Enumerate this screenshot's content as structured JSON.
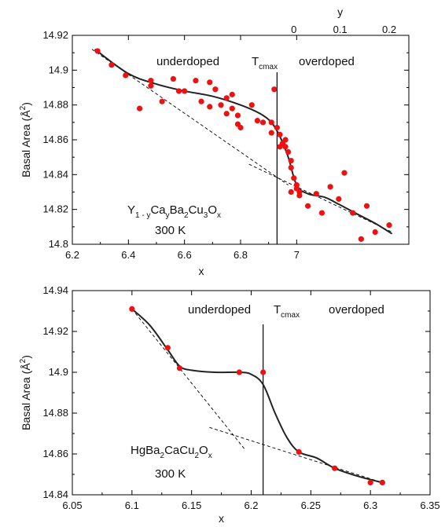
{
  "colors": {
    "point": "#ee1111",
    "line": "#222222",
    "axis": "#000000"
  },
  "chart_data": [
    {
      "type": "scatter",
      "xlabel": "x",
      "ylabel_prefix": "Basal Area (Å",
      "ylabel_sup": "2",
      "ylabel_suffix": ")",
      "xlim": [
        6.2,
        7.4
      ],
      "ylim": [
        14.8,
        14.92
      ],
      "x_ticks": [
        6.2,
        6.4,
        6.6,
        6.8,
        7.0
      ],
      "x_tick_labels": [
        "6.2",
        "6.4",
        "6.6",
        "6.8",
        "7"
      ],
      "y_ticks": [
        14.8,
        14.82,
        14.84,
        14.86,
        14.88,
        14.9,
        14.92
      ],
      "y_tick_labels": [
        "14.8",
        "14.82",
        "14.84",
        "14.86",
        "14.88",
        "14.9",
        "14.92"
      ],
      "top_axis": {
        "label": "y",
        "ticks": [
          {
            "x": 6.99,
            "label": "0"
          },
          {
            "x": 7.155,
            "label": "0.1"
          },
          {
            "x": 7.33,
            "label": "0.2"
          }
        ]
      },
      "annotations": {
        "underdoped": "underdoped",
        "tc_main": "T",
        "tc_sub": "cmax",
        "overdoped": "overdoped",
        "temperature": "300  K"
      },
      "formula": [
        {
          "t": "Y",
          "sub": false
        },
        {
          "t": "1 - y",
          "sub": true
        },
        {
          "t": "Ca",
          "sub": false
        },
        {
          "t": "y",
          "sub": true
        },
        {
          "t": "Ba",
          "sub": false
        },
        {
          "t": "2",
          "sub": true
        },
        {
          "t": "Cu",
          "sub": false
        },
        {
          "t": "3",
          "sub": true
        },
        {
          "t": "O",
          "sub": false
        },
        {
          "t": "x",
          "sub": true
        }
      ],
      "vline_x": 6.93,
      "points": [
        [
          6.29,
          14.911
        ],
        [
          6.34,
          14.903
        ],
        [
          6.39,
          14.897
        ],
        [
          6.44,
          14.878
        ],
        [
          6.48,
          14.894
        ],
        [
          6.48,
          14.891
        ],
        [
          6.52,
          14.882
        ],
        [
          6.56,
          14.895
        ],
        [
          6.58,
          14.888
        ],
        [
          6.6,
          14.888
        ],
        [
          6.64,
          14.894
        ],
        [
          6.66,
          14.882
        ],
        [
          6.69,
          14.893
        ],
        [
          6.69,
          14.879
        ],
        [
          6.71,
          14.889
        ],
        [
          6.73,
          14.88
        ],
        [
          6.75,
          14.884
        ],
        [
          6.75,
          14.875
        ],
        [
          6.77,
          14.886
        ],
        [
          6.77,
          14.878
        ],
        [
          6.79,
          14.874
        ],
        [
          6.79,
          14.869
        ],
        [
          6.8,
          14.867
        ],
        [
          6.84,
          14.88
        ],
        [
          6.86,
          14.871
        ],
        [
          6.88,
          14.87
        ],
        [
          6.91,
          14.87
        ],
        [
          6.91,
          14.864
        ],
        [
          6.92,
          14.889
        ],
        [
          6.93,
          14.867
        ],
        [
          6.94,
          14.863
        ],
        [
          6.94,
          14.856
        ],
        [
          6.95,
          14.858
        ],
        [
          6.96,
          14.86
        ],
        [
          6.96,
          14.856
        ],
        [
          6.97,
          14.853
        ],
        [
          6.98,
          14.848
        ],
        [
          6.98,
          14.844
        ],
        [
          6.98,
          14.83
        ],
        [
          6.99,
          14.838
        ],
        [
          7.0,
          14.834
        ],
        [
          7.0,
          14.832
        ],
        [
          7.01,
          14.83
        ],
        [
          7.01,
          14.828
        ],
        [
          7.04,
          14.822
        ],
        [
          7.07,
          14.829
        ],
        [
          7.09,
          14.818
        ],
        [
          7.12,
          14.833
        ],
        [
          7.15,
          14.826
        ],
        [
          7.17,
          14.841
        ],
        [
          7.2,
          14.818
        ],
        [
          7.23,
          14.803
        ],
        [
          7.25,
          14.822
        ],
        [
          7.28,
          14.807
        ],
        [
          7.33,
          14.811
        ]
      ],
      "fit_curve": [
        [
          6.28,
          14.912
        ],
        [
          6.4,
          14.898
        ],
        [
          6.5,
          14.892
        ],
        [
          6.6,
          14.888
        ],
        [
          6.7,
          14.885
        ],
        [
          6.8,
          14.88
        ],
        [
          6.87,
          14.875
        ],
        [
          6.91,
          14.87
        ],
        [
          6.94,
          14.862
        ],
        [
          6.97,
          14.85
        ],
        [
          7.0,
          14.834
        ],
        [
          7.04,
          14.829
        ],
        [
          7.1,
          14.827
        ],
        [
          7.15,
          14.823
        ],
        [
          7.22,
          14.817
        ],
        [
          7.28,
          14.812
        ],
        [
          7.34,
          14.806
        ]
      ],
      "dashed_lines": [
        [
          [
            6.27,
            14.912
          ],
          [
            6.97,
            14.834
          ]
        ],
        [
          [
            6.83,
            14.846
          ],
          [
            7.34,
            14.807
          ]
        ]
      ]
    },
    {
      "type": "scatter",
      "xlabel": "x",
      "ylabel_prefix": "Basal Area (Å",
      "ylabel_sup": "2",
      "ylabel_suffix": ")",
      "xlim": [
        6.05,
        6.35
      ],
      "ylim": [
        14.84,
        14.94
      ],
      "x_ticks": [
        6.05,
        6.1,
        6.15,
        6.2,
        6.25,
        6.3,
        6.35
      ],
      "x_tick_labels": [
        "6.05",
        "6.1",
        "6.15",
        "6.2",
        "6.25",
        "6.3",
        "6.35"
      ],
      "y_ticks": [
        14.84,
        14.86,
        14.88,
        14.9,
        14.92,
        14.94
      ],
      "y_tick_labels": [
        "14.84",
        "14.86",
        "14.88",
        "14.9",
        "14.92",
        "14.94"
      ],
      "annotations": {
        "underdoped": "underdoped",
        "tc_main": "T",
        "tc_sub": "cmax",
        "overdoped": "overdoped",
        "temperature": "300  K"
      },
      "formula": [
        {
          "t": "HgBa",
          "sub": false
        },
        {
          "t": "2",
          "sub": true
        },
        {
          "t": "CaCu",
          "sub": false
        },
        {
          "t": "2",
          "sub": true
        },
        {
          "t": "O",
          "sub": false
        },
        {
          "t": "x",
          "sub": true
        }
      ],
      "vline_x": 6.21,
      "points": [
        [
          6.1,
          14.931
        ],
        [
          6.13,
          14.912
        ],
        [
          6.14,
          14.902
        ],
        [
          6.19,
          14.9
        ],
        [
          6.21,
          14.9
        ],
        [
          6.24,
          14.861
        ],
        [
          6.27,
          14.853
        ],
        [
          6.3,
          14.846
        ],
        [
          6.31,
          14.846
        ]
      ],
      "fit_curve": [
        [
          6.1,
          14.931
        ],
        [
          6.115,
          14.923
        ],
        [
          6.13,
          14.911
        ],
        [
          6.14,
          14.903
        ],
        [
          6.15,
          14.901
        ],
        [
          6.17,
          14.9
        ],
        [
          6.19,
          14.9
        ],
        [
          6.2,
          14.899
        ],
        [
          6.21,
          14.894
        ],
        [
          6.22,
          14.88
        ],
        [
          6.23,
          14.868
        ],
        [
          6.24,
          14.861
        ],
        [
          6.255,
          14.858
        ],
        [
          6.27,
          14.853
        ],
        [
          6.29,
          14.849
        ],
        [
          6.31,
          14.846
        ]
      ],
      "dashed_lines": [
        [
          [
            6.1,
            14.931
          ],
          [
            6.195,
            14.862
          ]
        ],
        [
          [
            6.165,
            14.873
          ],
          [
            6.31,
            14.846
          ]
        ]
      ]
    }
  ]
}
